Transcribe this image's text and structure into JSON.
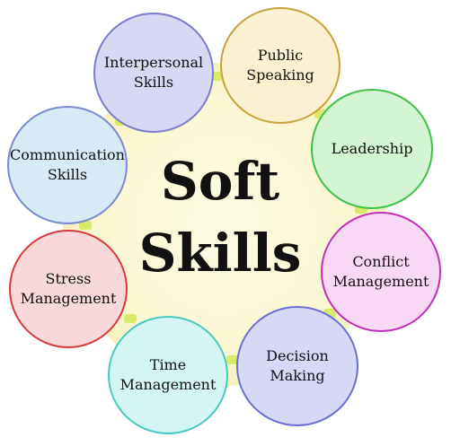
{
  "title": {
    "line1": "Soft",
    "line2": "Skills"
  },
  "nodes": [
    {
      "id": "interpersonal",
      "label": "Interpersonal\nSkills",
      "fill": "#d8d8f4",
      "stroke": "#7b7bd0"
    },
    {
      "id": "public-speaking",
      "label": "Public\nSpeaking",
      "fill": "#fbf0cf",
      "stroke": "#c8a23a"
    },
    {
      "id": "leadership",
      "label": "Leadership",
      "fill": "#d3f5d3",
      "stroke": "#3fc24a"
    },
    {
      "id": "conflict",
      "label": "Conflict\nManagement",
      "fill": "#f8d8f4",
      "stroke": "#c030b8"
    },
    {
      "id": "decision",
      "label": "Decision\nMaking",
      "fill": "#d6d8f6",
      "stroke": "#6a70d2"
    },
    {
      "id": "time",
      "label": "Time\nManagement",
      "fill": "#d3f6f4",
      "stroke": "#4ac8c0"
    },
    {
      "id": "stress",
      "label": "Stress\nManagement",
      "fill": "#f8d8d8",
      "stroke": "#d83a3a"
    },
    {
      "id": "communication",
      "label": "Communication\nSkills",
      "fill": "#d8eaf6",
      "stroke": "#7a8ad2"
    }
  ]
}
